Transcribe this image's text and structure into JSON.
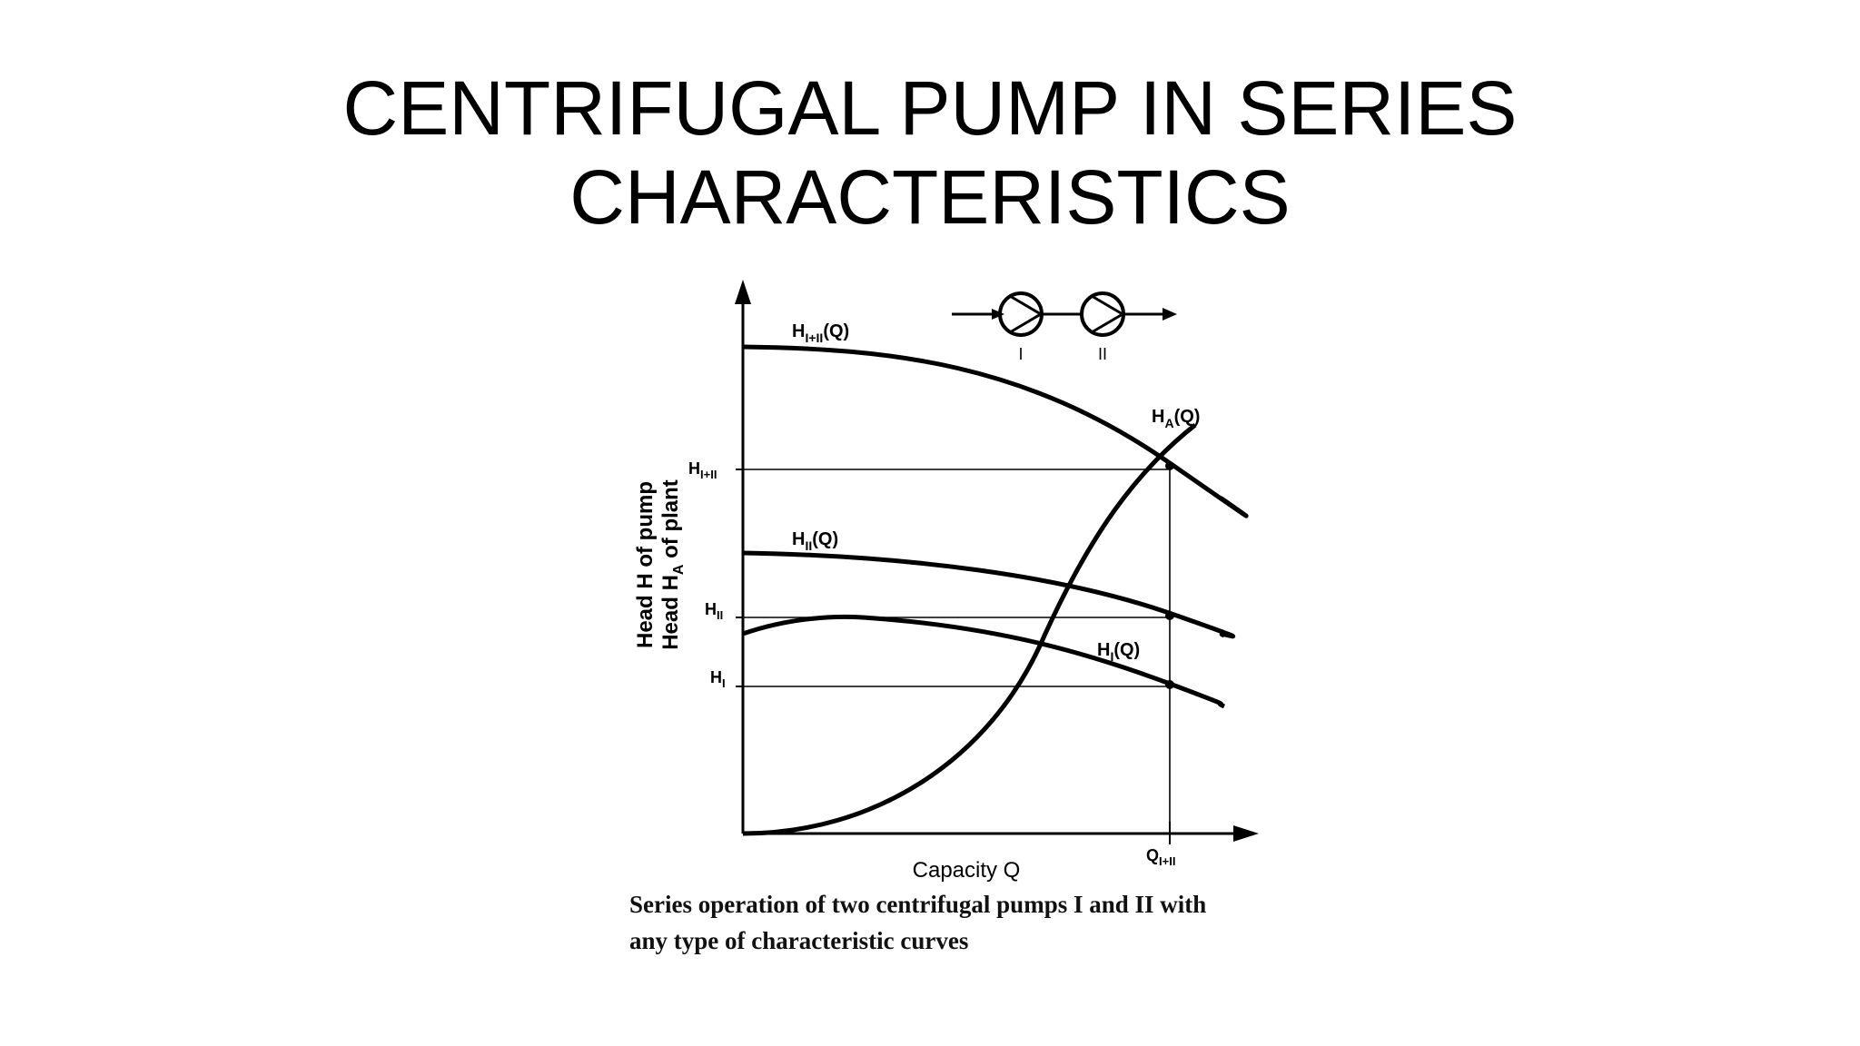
{
  "slide": {
    "title_line1": "CENTRIFUGAL PUMP IN SERIES",
    "title_line2": "CHARACTERISTICS"
  },
  "figure": {
    "y_axis_label_line1": "Head H of pump",
    "y_axis_label_line2": "Head H",
    "y_axis_label_line2_sub": "A",
    "y_axis_label_line2_rest": " of plant",
    "x_axis_label": "Capacity Q",
    "tick_q_base": "Q",
    "tick_q_sub": "I+II",
    "tick_h_base": "H",
    "tick_h_sum_sub": "I+II",
    "tick_h_ii_sub": "II",
    "tick_h_i_sub": "I",
    "curve_sum_base": "H",
    "curve_sum_sub": "I+II",
    "curve_sum_arg": "(Q)",
    "curve_ii_base": "H",
    "curve_ii_sub": "II",
    "curve_ii_arg": "(Q)",
    "curve_i_base": "H",
    "curve_i_sub": "I",
    "curve_i_arg": "(Q)",
    "curve_plant_base": "H",
    "curve_plant_sub": "A",
    "curve_plant_arg": "(Q)",
    "pump_1_label": "I",
    "pump_2_label": "II",
    "caption_line1": "Series operation of two centrifugal pumps I and II with",
    "caption_line2": "any type of characteristic curves"
  }
}
